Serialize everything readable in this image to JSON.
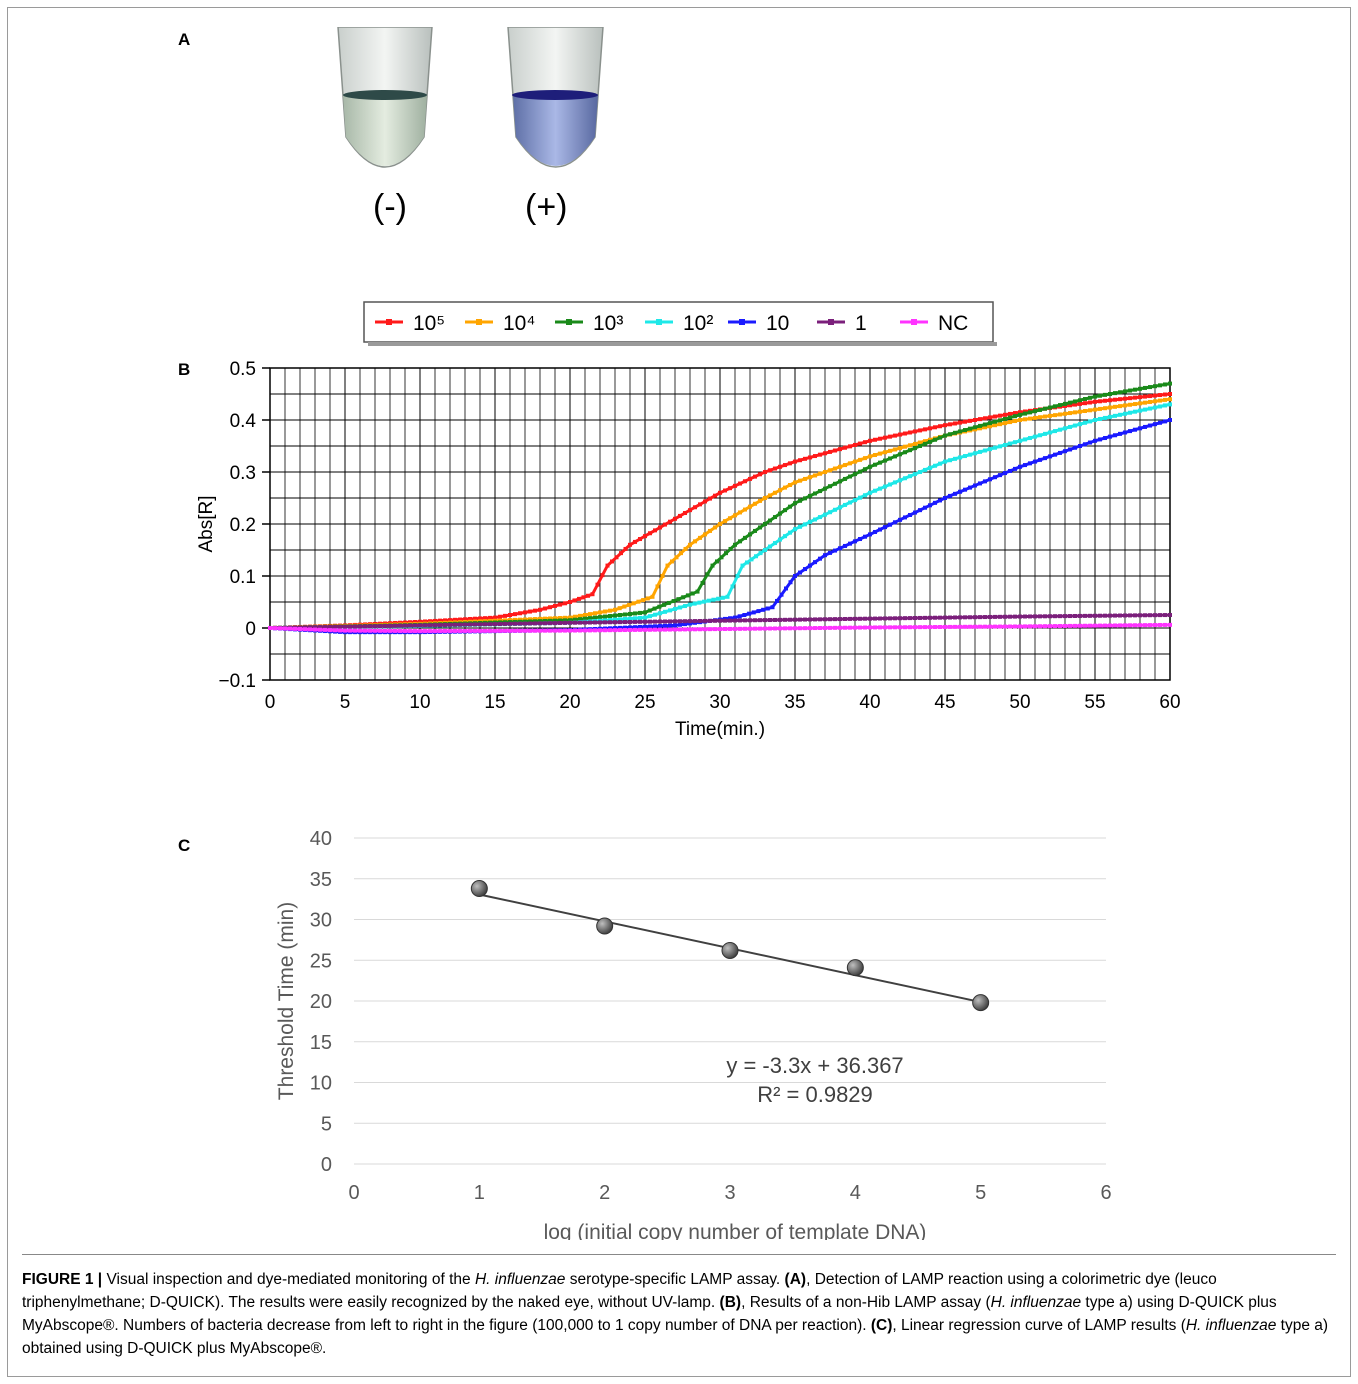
{
  "panels": {
    "a": {
      "label": "A",
      "tube_neg_label": "(-)",
      "tube_pos_label": "(+)"
    },
    "b": {
      "label": "B"
    },
    "c": {
      "label": "C"
    }
  },
  "chart_data": [
    {
      "type": "line",
      "panel": "B",
      "xlabel": "Time(min.)",
      "ylabel": "Abs[R]",
      "xlim": [
        0,
        60
      ],
      "ylim": [
        -0.1,
        0.5
      ],
      "x_ticks": [
        "0",
        "5",
        "10",
        "15",
        "20",
        "25",
        "30",
        "35",
        "40",
        "45",
        "50",
        "55",
        "60"
      ],
      "y_ticks": [
        "0.5",
        "0.4",
        "0.3",
        "0.2",
        "0.1",
        "0",
        "−0.1"
      ],
      "grid": true,
      "legend_position": "top",
      "series": [
        {
          "name": "10⁵",
          "color": "#ff1a1a",
          "points": [
            [
              0,
              0
            ],
            [
              5,
              0.005
            ],
            [
              10,
              0.012
            ],
            [
              15,
              0.02
            ],
            [
              18,
              0.035
            ],
            [
              20,
              0.05
            ],
            [
              21.5,
              0.065
            ],
            [
              22.5,
              0.12
            ],
            [
              24,
              0.16
            ],
            [
              27,
              0.21
            ],
            [
              30,
              0.26
            ],
            [
              33,
              0.3
            ],
            [
              35,
              0.32
            ],
            [
              40,
              0.36
            ],
            [
              45,
              0.39
            ],
            [
              50,
              0.415
            ],
            [
              55,
              0.435
            ],
            [
              60,
              0.45
            ]
          ]
        },
        {
          "name": "10⁴",
          "color": "#ffa500",
          "points": [
            [
              0,
              0
            ],
            [
              10,
              0.008
            ],
            [
              20,
              0.02
            ],
            [
              23,
              0.035
            ],
            [
              25.5,
              0.06
            ],
            [
              26.5,
              0.12
            ],
            [
              28,
              0.16
            ],
            [
              30,
              0.2
            ],
            [
              33,
              0.25
            ],
            [
              35,
              0.28
            ],
            [
              40,
              0.33
            ],
            [
              45,
              0.37
            ],
            [
              50,
              0.4
            ],
            [
              55,
              0.42
            ],
            [
              60,
              0.44
            ]
          ]
        },
        {
          "name": "10³",
          "color": "#1a8a1a",
          "points": [
            [
              0,
              0
            ],
            [
              10,
              0.006
            ],
            [
              20,
              0.015
            ],
            [
              25,
              0.03
            ],
            [
              28.5,
              0.07
            ],
            [
              29.5,
              0.12
            ],
            [
              31,
              0.16
            ],
            [
              33,
              0.2
            ],
            [
              35,
              0.24
            ],
            [
              40,
              0.31
            ],
            [
              45,
              0.37
            ],
            [
              50,
              0.41
            ],
            [
              55,
              0.445
            ],
            [
              60,
              0.47
            ]
          ]
        },
        {
          "name": "10²",
          "color": "#1ee8e8",
          "points": [
            [
              0,
              0
            ],
            [
              10,
              0.004
            ],
            [
              20,
              0.01
            ],
            [
              25,
              0.02
            ],
            [
              28,
              0.045
            ],
            [
              30.5,
              0.06
            ],
            [
              31.5,
              0.12
            ],
            [
              33,
              0.15
            ],
            [
              35,
              0.19
            ],
            [
              40,
              0.26
            ],
            [
              45,
              0.32
            ],
            [
              50,
              0.36
            ],
            [
              55,
              0.4
            ],
            [
              60,
              0.43
            ]
          ]
        },
        {
          "name": "10",
          "color": "#1a1aff",
          "points": [
            [
              0,
              0
            ],
            [
              5,
              -0.008
            ],
            [
              10,
              -0.008
            ],
            [
              20,
              -0.004
            ],
            [
              27,
              0.005
            ],
            [
              31,
              0.02
            ],
            [
              33.5,
              0.04
            ],
            [
              35,
              0.1
            ],
            [
              37,
              0.14
            ],
            [
              40,
              0.18
            ],
            [
              45,
              0.25
            ],
            [
              50,
              0.31
            ],
            [
              55,
              0.36
            ],
            [
              60,
              0.4
            ]
          ]
        },
        {
          "name": "1",
          "color": "#7b1f7b",
          "points": [
            [
              0,
              0
            ],
            [
              10,
              0.005
            ],
            [
              20,
              0.01
            ],
            [
              30,
              0.014
            ],
            [
              40,
              0.018
            ],
            [
              50,
              0.022
            ],
            [
              60,
              0.025
            ]
          ]
        },
        {
          "name": "NC",
          "color": "#ff33ff",
          "points": [
            [
              0,
              0
            ],
            [
              5,
              -0.005
            ],
            [
              10,
              -0.006
            ],
            [
              20,
              -0.005
            ],
            [
              30,
              -0.002
            ],
            [
              40,
              0.001
            ],
            [
              50,
              0.003
            ],
            [
              60,
              0.006
            ]
          ]
        }
      ]
    },
    {
      "type": "scatter",
      "panel": "C",
      "xlabel": "log (initial copy number of template DNA)",
      "ylabel": "Threshold  Time  (min)",
      "xlim": [
        0,
        6
      ],
      "ylim": [
        0,
        40
      ],
      "x_ticks": [
        "0",
        "1",
        "2",
        "3",
        "4",
        "5",
        "6"
      ],
      "y_ticks": [
        "40",
        "35",
        "30",
        "25",
        "20",
        "15",
        "10",
        "5",
        "0"
      ],
      "grid": true,
      "points": [
        [
          1,
          33.8
        ],
        [
          2,
          29.2
        ],
        [
          3,
          26.2
        ],
        [
          4,
          24.1
        ],
        [
          5,
          19.8
        ]
      ],
      "trendline": {
        "slope": -3.3,
        "intercept": 36.367
      },
      "equation": "y = -3.3x + 36.367",
      "r2": "R² = 0.9829"
    }
  ],
  "caption": {
    "figure_label": "FIGURE 1 |",
    "part1": " Visual inspection and dye-mediated monitoring of the ",
    "species1": "H. influenzae",
    "part2": " serotype-specific LAMP assay. ",
    "ref_a": "(A)",
    "part3": ", Detection of LAMP reaction using a colorimetric dye (leuco triphenylmethane; D-QUICK). The results were easily recognized by the naked eye, without UV-lamp. ",
    "ref_b": "(B)",
    "part4": ", Results of a non-Hib LAMP assay (",
    "species2": "H. influenzae",
    "part5": " type a) using D-QUICK plus MyAbscope®. Numbers of bacteria decrease from left to right in the figure (100,000 to 1 copy number of DNA per reaction). ",
    "ref_c": "(C)",
    "part6": ", Linear regression curve of LAMP results (",
    "species3": "H. influenzae",
    "part7": " type a) obtained using D-QUICK plus MyAbscope®."
  }
}
